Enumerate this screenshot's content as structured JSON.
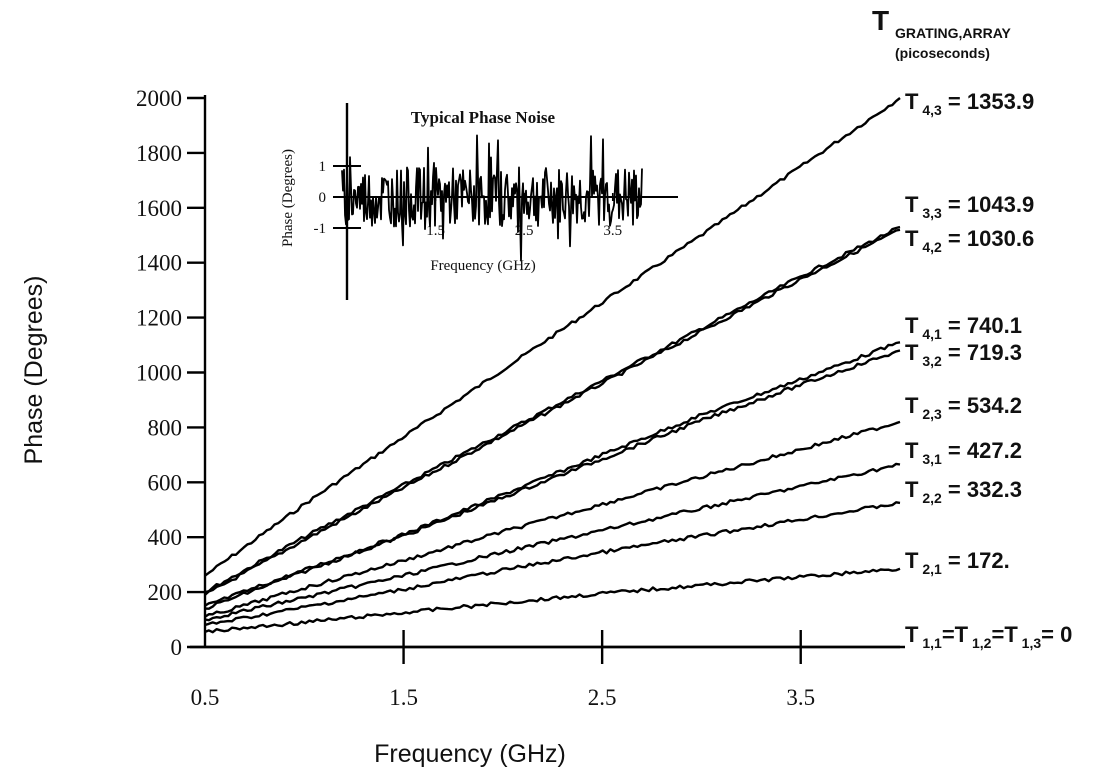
{
  "chart_data": [
    {
      "type": "line",
      "xlabel": "Frequency (GHz)",
      "ylabel": "Phase (Degrees)",
      "xlim": [
        0.5,
        4.0
      ],
      "ylim": [
        0,
        2000
      ],
      "xticks": [
        "0.5",
        "1.5",
        "2.5",
        "3.5"
      ],
      "yticks": [
        "0",
        "200",
        "400",
        "600",
        "800",
        "1000",
        "1200",
        "1400",
        "1600",
        "1800",
        "2000"
      ],
      "grid": false,
      "legend_header": {
        "main": "T",
        "subscript": "GRATING,ARRAY",
        "units": "(picoseconds)"
      },
      "series": [
        {
          "name": "T 4,3 = 1353.9",
          "label_main": "T",
          "label_sub": "4,3",
          "label_value": "= 1353.9",
          "x": [
            0.5,
            1.0,
            1.5,
            2.0,
            2.5,
            3.0,
            3.5,
            4.0
          ],
          "y": [
            260,
            520,
            765,
            1010,
            1255,
            1500,
            1750,
            2000
          ]
        },
        {
          "name": "T 3,3 = 1043.9",
          "label_main": "T",
          "label_sub": "3,3",
          "label_value": "= 1043.9",
          "x": [
            0.5,
            1.0,
            1.5,
            2.0,
            2.5,
            3.0,
            3.5,
            4.0
          ],
          "y": [
            200,
            400,
            590,
            780,
            970,
            1160,
            1350,
            1530
          ]
        },
        {
          "name": "T 4,2 = 1030.6",
          "label_main": "T",
          "label_sub": "4,2",
          "label_value": "= 1030.6",
          "x": [
            0.5,
            1.0,
            1.5,
            2.0,
            2.5,
            3.0,
            3.5,
            4.0
          ],
          "y": [
            190,
            390,
            580,
            770,
            960,
            1150,
            1340,
            1520
          ]
        },
        {
          "name": "T 4,1 = 740.1",
          "label_main": "T",
          "label_sub": "4,1",
          "label_value": "= 740.1",
          "x": [
            0.5,
            1.0,
            1.5,
            2.0,
            2.5,
            3.0,
            3.5,
            4.0
          ],
          "y": [
            150,
            280,
            410,
            555,
            700,
            845,
            975,
            1110
          ]
        },
        {
          "name": "T 3,2 = 719.3",
          "label_main": "T",
          "label_sub": "3,2",
          "label_value": "= 719.3",
          "x": [
            0.5,
            1.0,
            1.5,
            2.0,
            2.5,
            3.0,
            3.5,
            4.0
          ],
          "y": [
            140,
            275,
            405,
            545,
            685,
            825,
            955,
            1080
          ]
        },
        {
          "name": "T 2,3 = 534.2",
          "label_main": "T",
          "label_sub": "2,3",
          "label_value": "= 534.2",
          "x": [
            0.5,
            1.0,
            1.5,
            2.0,
            2.5,
            3.0,
            3.5,
            4.0
          ],
          "y": [
            110,
            215,
            315,
            420,
            520,
            620,
            720,
            820
          ]
        },
        {
          "name": "T 3,1 = 427.2",
          "label_main": "T",
          "label_sub": "3,1",
          "label_value": "= 427.2",
          "x": [
            0.5,
            1.0,
            1.5,
            2.0,
            2.5,
            3.0,
            3.5,
            4.0
          ],
          "y": [
            100,
            180,
            260,
            345,
            425,
            505,
            585,
            665
          ]
        },
        {
          "name": "T 2,2 = 332.3",
          "label_main": "T",
          "label_sub": "2,2",
          "label_value": "= 332.3",
          "x": [
            0.5,
            1.0,
            1.5,
            2.0,
            2.5,
            3.0,
            3.5,
            4.0
          ],
          "y": [
            80,
            145,
            210,
            280,
            345,
            405,
            465,
            525
          ]
        },
        {
          "name": "T 2,1 = 172.",
          "label_main": "T",
          "label_sub": "2,1",
          "label_value": "= 172.",
          "x": [
            0.5,
            1.0,
            1.5,
            2.0,
            2.5,
            3.0,
            3.5,
            4.0
          ],
          "y": [
            55,
            90,
            125,
            160,
            195,
            225,
            255,
            285
          ]
        },
        {
          "name": "T 1,1=T 1,2=T 1,3= 0",
          "label_main": "T",
          "label_sub": "1,1",
          "label_value": "",
          "label_extra": [
            {
              "main": "=T",
              "sub": "1,2"
            },
            {
              "main": "=T",
              "sub": "1,3"
            },
            {
              "main": "= 0",
              "sub": ""
            }
          ],
          "x": [
            0.5,
            4.0
          ],
          "y": [
            0,
            0
          ]
        }
      ]
    },
    {
      "type": "line",
      "title": "Typical Phase Noise",
      "xlabel": "Frequency (GHz)",
      "ylabel": "Phase (Degrees)",
      "xticks": [
        "1.5",
        "2.5",
        "3.5"
      ],
      "yticks": [
        "1",
        "0",
        "-1"
      ],
      "xlim": [
        0.5,
        4.0
      ],
      "ylim": [
        -2.5,
        2.5
      ],
      "noise_amplitude_deg": 1.6
    }
  ]
}
